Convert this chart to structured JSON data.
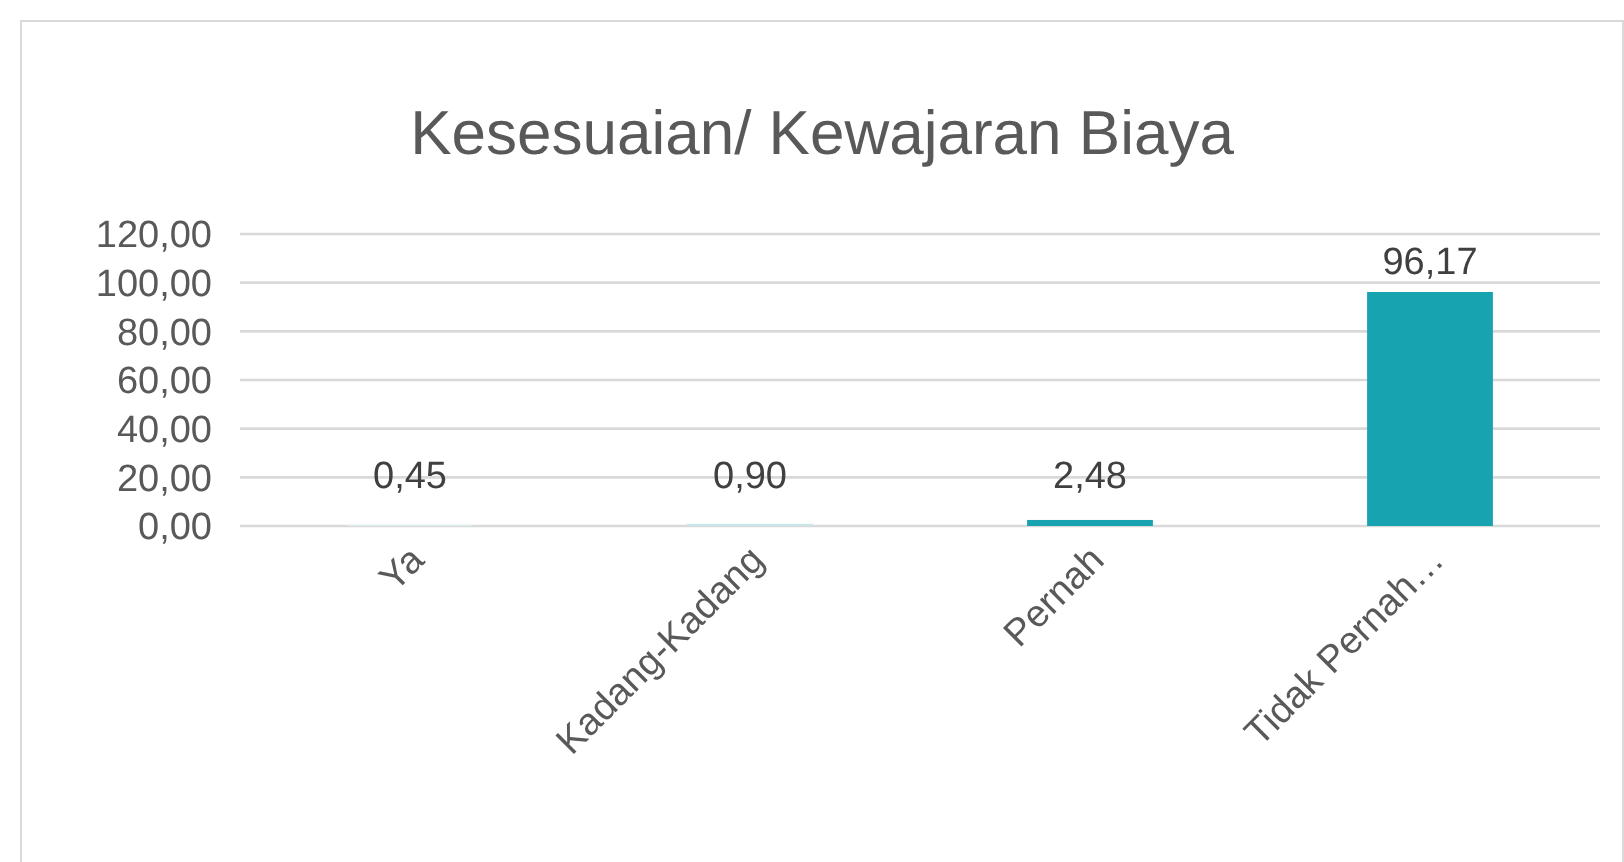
{
  "chart_data": {
    "type": "bar",
    "title": "Kesesuaian/ Kewajaran Biaya",
    "categories": [
      "Ya",
      "Kadang-Kadang",
      "Pernah",
      "Tidak Pernah…"
    ],
    "values": [
      0.45,
      0.9,
      2.48,
      96.17
    ],
    "colors": [
      "#d9eff1",
      "#c8e6e9",
      "#17a3b0",
      "#17a3b0"
    ],
    "value_labels": [
      "0,45",
      "0,90",
      "2,48",
      "96,17"
    ],
    "ylim": [
      0,
      120
    ],
    "yticks": [
      {
        "value": 0,
        "label": "0,00"
      },
      {
        "value": 20,
        "label": "20,00"
      },
      {
        "value": 40,
        "label": "40,00"
      },
      {
        "value": 60,
        "label": "60,00"
      },
      {
        "value": 80,
        "label": "80,00"
      },
      {
        "value": 100,
        "label": "100,00"
      },
      {
        "value": 120,
        "label": "120,00"
      }
    ],
    "grid": "y"
  }
}
